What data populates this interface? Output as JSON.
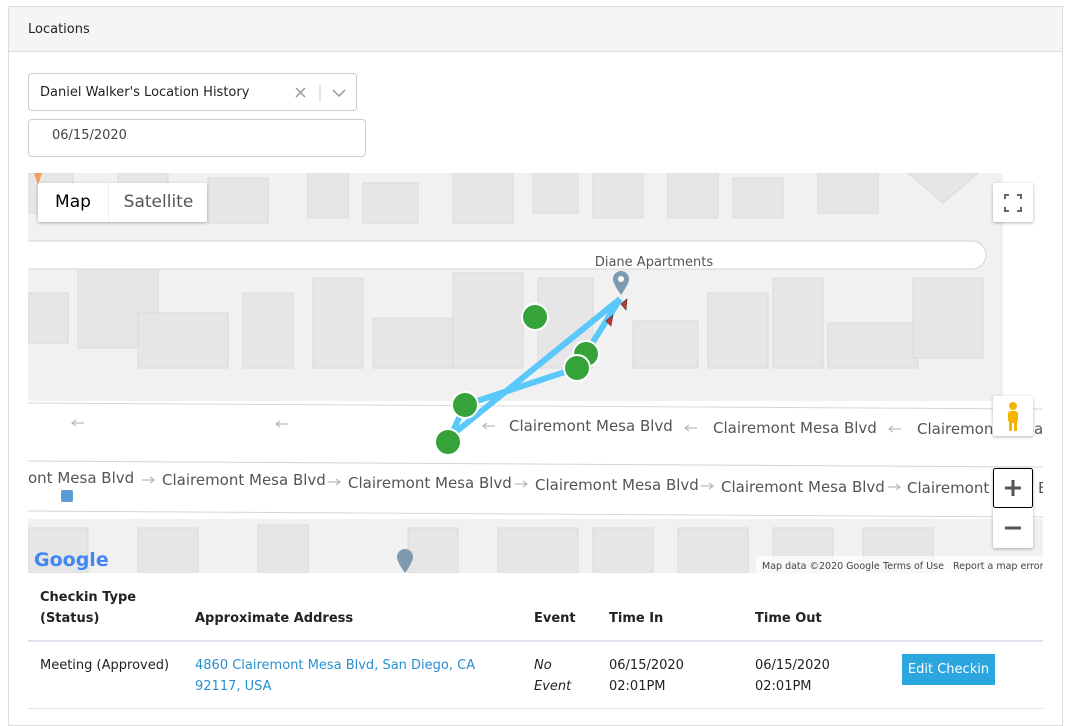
{
  "panel": {
    "title": "Locations"
  },
  "filters": {
    "person_select": "Daniel Walker's Location History",
    "date": "06/15/2020"
  },
  "map": {
    "type_buttons": [
      "Map",
      "Satellite"
    ],
    "place_label": "Diane Apartments",
    "street_labels_upper": [
      "Clairemont Mesa Blvd",
      "Clairemont Mesa Blvd",
      "Clairemont Mesa Blvd"
    ],
    "street_labels_lower": [
      "ont Mesa Blvd",
      "Clairemont Mesa Blvd",
      "Clairemont Mesa Blvd",
      "Clairemont Mesa Blvd",
      "Clairemont Mesa Blvd",
      "Clairemont Mesa Blvd"
    ],
    "logo": "Google",
    "attribution": [
      "Map data ©2020 Google",
      "Terms of Use",
      "Report a map error"
    ]
  },
  "table": {
    "headers": [
      "Checkin Type (Status)",
      "Approximate Address",
      "Event",
      "Time In",
      "Time Out"
    ],
    "rows": [
      [
        "Meeting (Approved)",
        "4860 Clairemont Mesa Blvd, San Diego, CA 92117, USA",
        "No Event",
        "06/15/2020 02:01PM",
        "06/15/2020 02:01PM",
        "Edit Checkin"
      ]
    ]
  }
}
